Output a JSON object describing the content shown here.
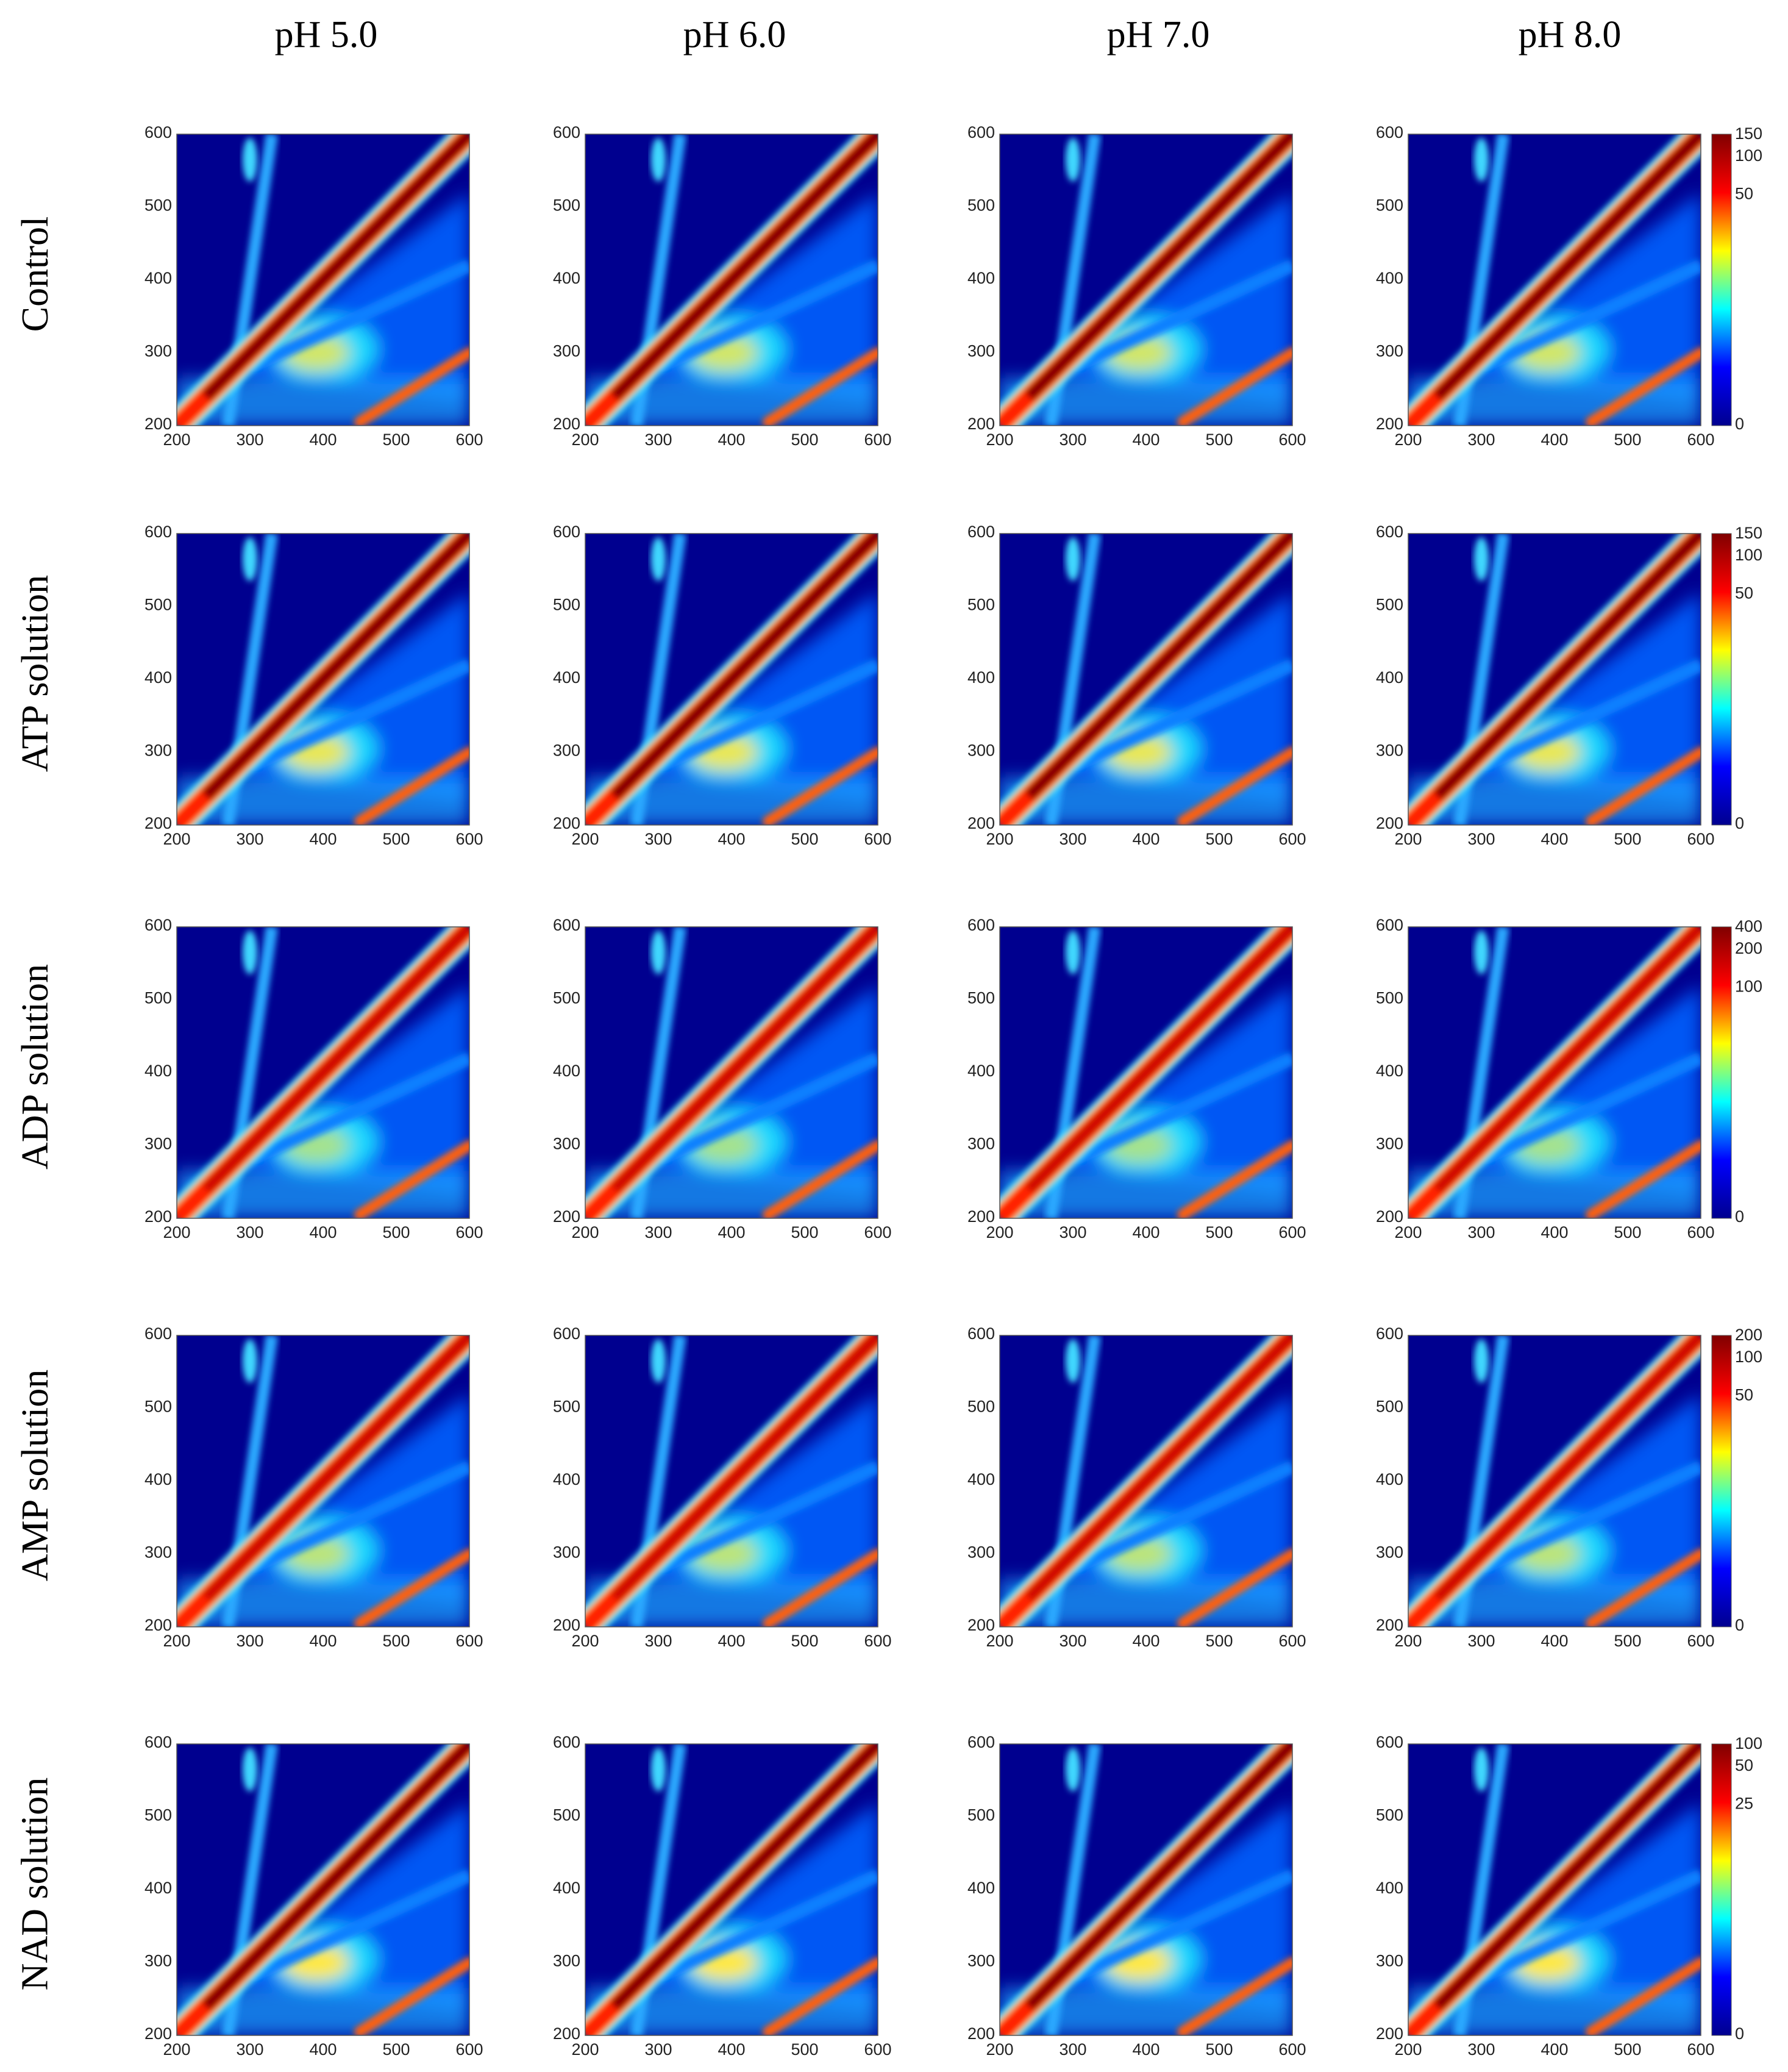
{
  "chart_data": {
    "type": "heatmap",
    "columns": [
      "pH 5.0",
      "pH 6.0",
      "pH 7.0",
      "pH 8.0"
    ],
    "rows": [
      {
        "label": "Control",
        "colorbar_ticks": [
          "150",
          "100",
          "50",
          "0"
        ]
      },
      {
        "label": "ATP solution",
        "colorbar_ticks": [
          "150",
          "100",
          "50",
          "0"
        ]
      },
      {
        "label": "ADP solution",
        "colorbar_ticks": [
          "400",
          "200",
          "100",
          "0"
        ]
      },
      {
        "label": "AMP solution",
        "colorbar_ticks": [
          "200",
          "100",
          "50",
          "0"
        ]
      },
      {
        "label": "NAD solution",
        "colorbar_ticks": [
          "100",
          "50",
          "25",
          "0"
        ]
      }
    ],
    "x_ticks": [
      "200",
      "300",
      "400",
      "500",
      "600"
    ],
    "y_ticks": [
      "200",
      "300",
      "400",
      "500",
      "600"
    ],
    "xlim": [
      200,
      600
    ],
    "ylim": [
      200,
      600
    ],
    "colormap": [
      "#00008f",
      "#0000ff",
      "#00ffff",
      "#ffff00",
      "#ff0000",
      "#800000"
    ]
  }
}
